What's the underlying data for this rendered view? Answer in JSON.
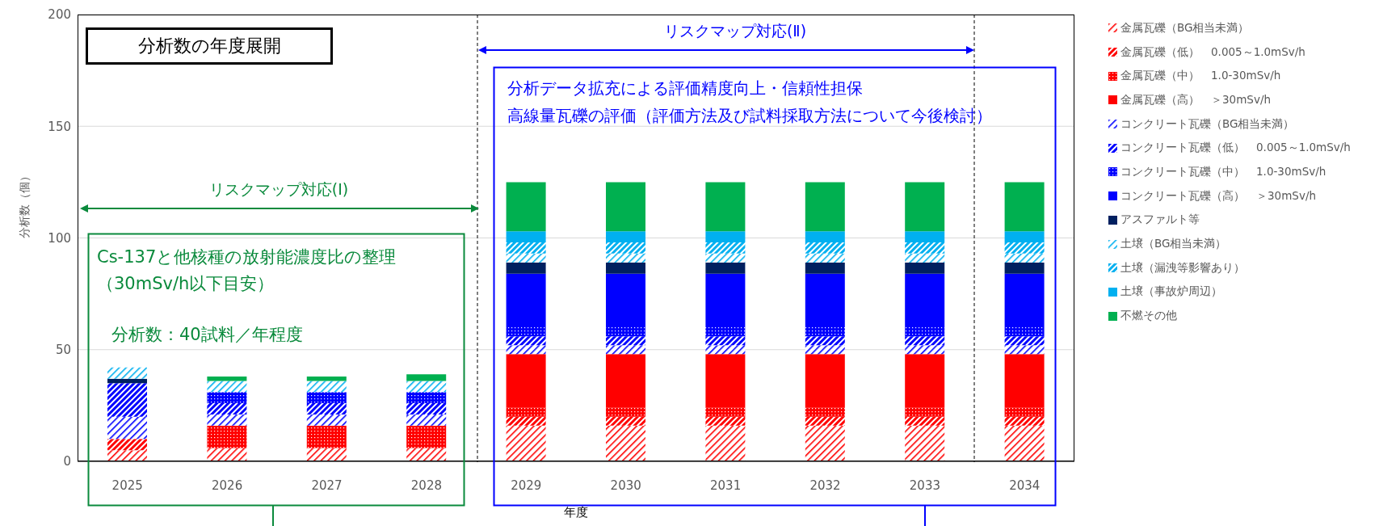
{
  "chart_data": {
    "type": "bar",
    "title": "分析数の年度展開",
    "xlabel": "年度",
    "ylabel": "分析数（個）",
    "categories": [
      "2025",
      "2026",
      "2027",
      "2028",
      "2029",
      "2030",
      "2031",
      "2032",
      "2033",
      "2034"
    ],
    "stacked": true,
    "ylim": [
      0,
      200
    ],
    "yticks": [
      0,
      50,
      100,
      150,
      200
    ],
    "grid": "y",
    "legend": "right",
    "series": [
      {
        "name": "金属瓦礫（BG相当未満）",
        "color": "#ff0000",
        "values": [
          5,
          6,
          6,
          6,
          16,
          16,
          16,
          16,
          16,
          16
        ]
      },
      {
        "name": "金属瓦礫（低）　0.005～1.0mSv/h",
        "color": "#ff0000",
        "values": [
          5,
          0,
          0,
          0,
          4,
          4,
          4,
          4,
          4,
          4
        ]
      },
      {
        "name": "金属瓦礫（中）　1.0-30mSv/h",
        "color": "#ff0000",
        "values": [
          0,
          10,
          10,
          10,
          4,
          4,
          4,
          4,
          4,
          4
        ]
      },
      {
        "name": "金属瓦礫（高）　＞30mSv/h",
        "color": "#ff0000",
        "values": [
          0,
          0,
          0,
          0,
          24,
          24,
          24,
          24,
          24,
          24
        ]
      },
      {
        "name": "コンクリート瓦礫（BG相当未満）",
        "color": "#0000ff",
        "values": [
          10,
          5,
          5,
          5,
          4,
          4,
          4,
          4,
          4,
          4
        ]
      },
      {
        "name": "コンクリート瓦礫（低）　0.005～1.0mSv/h",
        "color": "#0000ff",
        "values": [
          15,
          5,
          5,
          5,
          4,
          4,
          4,
          4,
          4,
          4
        ]
      },
      {
        "name": "コンクリート瓦礫（中）　1.0-30mSv/h",
        "color": "#0000ff",
        "values": [
          0,
          5,
          5,
          5,
          4,
          4,
          4,
          4,
          4,
          4
        ]
      },
      {
        "name": "コンクリート瓦礫（高）　＞30mSv/h",
        "color": "#0000ff",
        "values": [
          0,
          0,
          0,
          0,
          24,
          24,
          24,
          24,
          24,
          24
        ]
      },
      {
        "name": "アスファルト等",
        "color": "#002060",
        "values": [
          2,
          0,
          0,
          0,
          5,
          5,
          5,
          5,
          5,
          5
        ]
      },
      {
        "name": "土壌（BG相当未満）",
        "color": "#00b0f0",
        "values": [
          5,
          5,
          5,
          5,
          4,
          4,
          4,
          4,
          4,
          4
        ]
      },
      {
        "name": "土壌（漏洩等影響あり）",
        "color": "#00b0f0",
        "values": [
          0,
          0,
          0,
          0,
          5,
          5,
          5,
          5,
          5,
          5
        ]
      },
      {
        "name": "土壌（事故炉周辺）",
        "color": "#00b0f0",
        "values": [
          0,
          0,
          0,
          0,
          5,
          5,
          5,
          5,
          5,
          5
        ]
      },
      {
        "name": "不燃その他",
        "color": "#00b050",
        "values": [
          0,
          2,
          2,
          3,
          22,
          22,
          22,
          22,
          22,
          22
        ]
      }
    ],
    "annotations": [
      "リスクマップ対応(Ⅰ)",
      "リスクマップ対応(Ⅱ)",
      "Cs-137と他核種の放射能濃度比の整理（30mSv/h以下目安）",
      "分析数：40試料／年程度",
      "分析データ拡充による評価精度向上・信頼性担保",
      "高線量瓦礫の評価（評価方法及び試料採取方法について今後検討）"
    ]
  }
}
